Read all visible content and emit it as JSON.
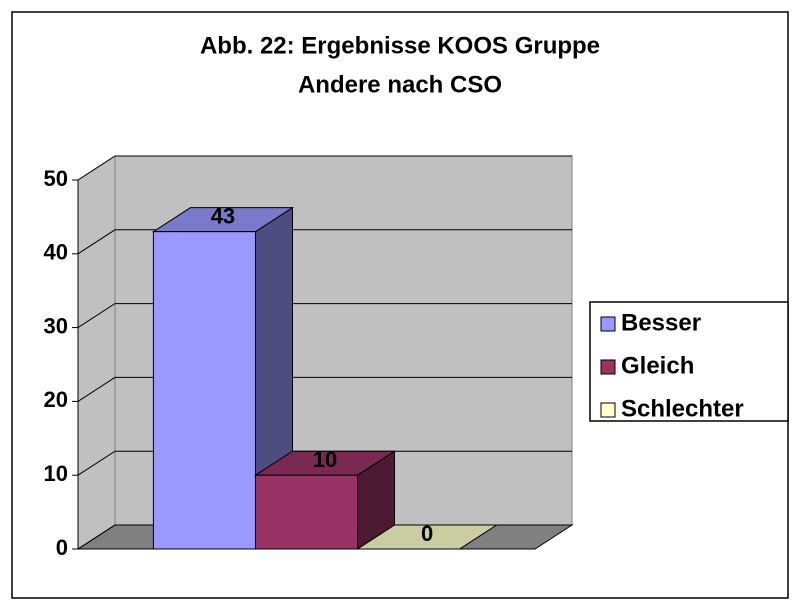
{
  "chart_data": {
    "type": "bar3d",
    "title": [
      "Abb. 22: Ergebnisse KOOS Gruppe",
      "Andere nach CSO"
    ],
    "categories": [
      null
    ],
    "series": [
      {
        "name": "Besser",
        "color": "#9999ff",
        "values": [
          43
        ]
      },
      {
        "name": "Gleich",
        "color": "#993366",
        "values": [
          10
        ]
      },
      {
        "name": "Schlechter",
        "color": "#ffffcc",
        "values": [
          0
        ]
      }
    ],
    "ylim": [
      0,
      50
    ],
    "yticks": [
      0,
      10,
      20,
      30,
      40,
      50
    ],
    "grid": true,
    "legend": "right"
  }
}
